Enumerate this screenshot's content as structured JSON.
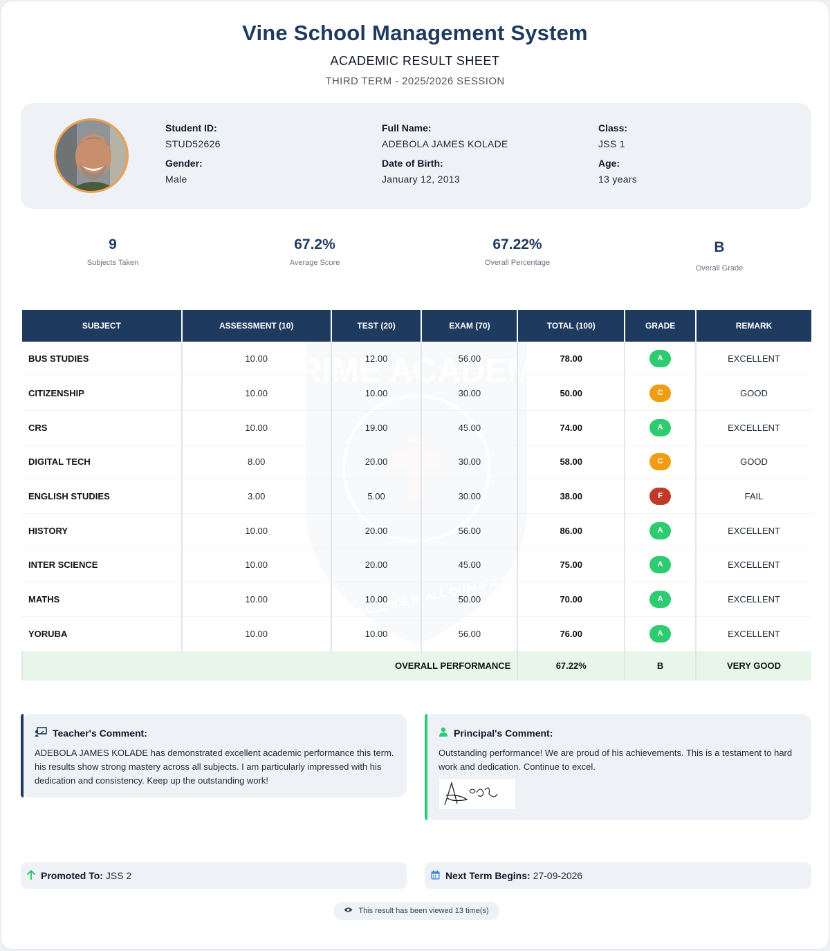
{
  "header": {
    "school_name": "Vine School Management System",
    "sheet_title": "ACADEMIC RESULT SHEET",
    "term": "THIRD TERM - 2025/2026 SESSION"
  },
  "student": {
    "student_id_label": "Student ID:",
    "student_id": "STUD52626",
    "full_name_label": "Full Name:",
    "full_name": "ADEBOLA JAMES KOLADE",
    "class_label": "Class:",
    "class": "JSS 1",
    "gender_label": "Gender:",
    "gender": "Male",
    "dob_label": "Date of Birth:",
    "dob": "January 12, 2013",
    "age_label": "Age:",
    "age": "13 years"
  },
  "stats": [
    {
      "value": "9",
      "caption": "Subjects Taken"
    },
    {
      "value": "67.2%",
      "caption": "Average Score"
    },
    {
      "value": "67.22%",
      "caption": "Overall Percentage"
    },
    {
      "value": "B",
      "caption": "Overall Grade"
    }
  ],
  "table": {
    "headers": [
      "SUBJECT",
      "ASSESSMENT (10)",
      "TEST (20)",
      "EXAM (70)",
      "TOTAL (100)",
      "GRADE",
      "REMARK"
    ],
    "rows": [
      {
        "subject": "BUS STUDIES",
        "assessment": "10.00",
        "test": "12.00",
        "exam": "56.00",
        "total": "78.00",
        "grade": "A",
        "remark": "EXCELLENT"
      },
      {
        "subject": "CITIZENSHIP",
        "assessment": "10.00",
        "test": "10.00",
        "exam": "30.00",
        "total": "50.00",
        "grade": "C",
        "remark": "GOOD"
      },
      {
        "subject": "CRS",
        "assessment": "10.00",
        "test": "19.00",
        "exam": "45.00",
        "total": "74.00",
        "grade": "A",
        "remark": "EXCELLENT"
      },
      {
        "subject": "DIGITAL TECH",
        "assessment": "8.00",
        "test": "20.00",
        "exam": "30.00",
        "total": "58.00",
        "grade": "C",
        "remark": "GOOD"
      },
      {
        "subject": "ENGLISH STUDIES",
        "assessment": "3.00",
        "test": "5.00",
        "exam": "30.00",
        "total": "38.00",
        "grade": "F",
        "remark": "FAIL"
      },
      {
        "subject": "HISTORY",
        "assessment": "10.00",
        "test": "20.00",
        "exam": "56.00",
        "total": "86.00",
        "grade": "A",
        "remark": "EXCELLENT"
      },
      {
        "subject": "INTER SCIENCE",
        "assessment": "10.00",
        "test": "20.00",
        "exam": "45.00",
        "total": "75.00",
        "grade": "A",
        "remark": "EXCELLENT"
      },
      {
        "subject": "MATHS",
        "assessment": "10.00",
        "test": "10.00",
        "exam": "50.00",
        "total": "70.00",
        "grade": "A",
        "remark": "EXCELLENT"
      },
      {
        "subject": "YORUBA",
        "assessment": "10.00",
        "test": "10.00",
        "exam": "56.00",
        "total": "76.00",
        "grade": "A",
        "remark": "EXCELLENT"
      }
    ],
    "overall": {
      "label": "OVERALL PERFORMANCE",
      "total": "67.22%",
      "grade": "B",
      "remark": "VERY GOOD"
    }
  },
  "grade_colors": {
    "A": "#2ecc71",
    "C": "#f39c12",
    "F": "#c0392b"
  },
  "watermark": {
    "ring_text": "PRIME ACADEMY",
    "motto": "MOTTO: EXCELLENCE IN ALL QUALIFICATIONS"
  },
  "teacher_comment": {
    "title": "Teacher's Comment:",
    "text": "ADEBOLA JAMES KOLADE has demonstrated excellent academic performance this term. his results show strong mastery across all subjects. I am particularly impressed with his dedication and consistency. Keep up the outstanding work!",
    "accent": "#1e3a5f"
  },
  "principal_comment": {
    "title": "Principal's Comment:",
    "text": "Outstanding performance! We are proud of his achievements. This is a testament to hard work and dedication. Continue to excel.",
    "accent": "#2ecc71"
  },
  "footer": {
    "promoted_label": "Promoted To:",
    "promoted_value": "JSS 2",
    "next_term_label": "Next Term Begins:",
    "next_term_value": "27-09-2026",
    "views_text": "This result has been viewed 13 time(s)"
  }
}
